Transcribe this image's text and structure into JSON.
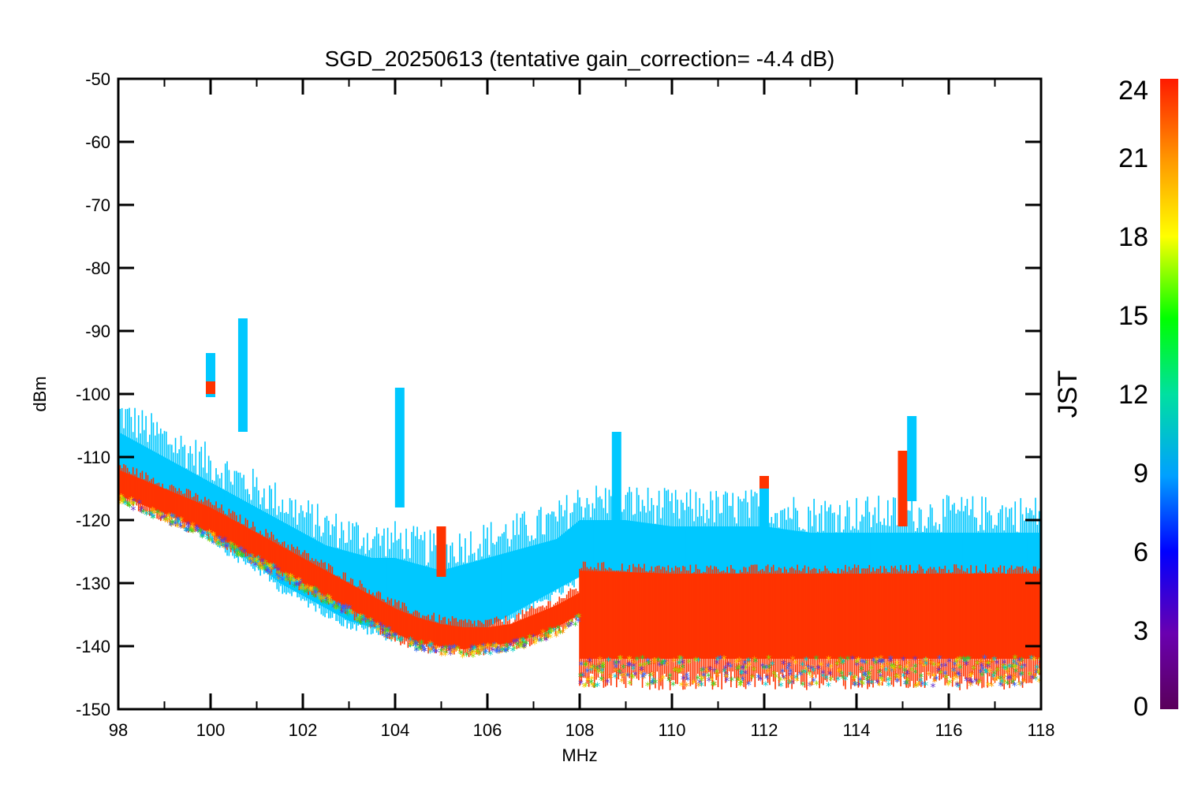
{
  "chart_data": {
    "type": "scatter",
    "title": "SGD_20250613 (tentative gain_correction= -4.4 dB)",
    "xlabel": "MHz",
    "ylabel": "dBm",
    "xlim": [
      98,
      118
    ],
    "ylim": [
      -150,
      -50
    ],
    "x_ticks": [
      "98",
      "100",
      "102",
      "104",
      "106",
      "108",
      "110",
      "112",
      "114",
      "116",
      "118"
    ],
    "y_ticks": [
      "-50",
      "-60",
      "-70",
      "-80",
      "-90",
      "-100",
      "-110",
      "-120",
      "-130",
      "-140",
      "-150"
    ],
    "colorbar": {
      "label": "JST",
      "range": [
        0,
        24
      ],
      "ticks": [
        "0",
        "3",
        "6",
        "9",
        "12",
        "15",
        "18",
        "21",
        "24"
      ],
      "colormap": "rainbow"
    },
    "series": [
      {
        "color": "#00c8ff",
        "description_hours": 8.5,
        "envelope_x": [
          98,
          98.5,
          99,
          99.5,
          100,
          100.5,
          101,
          101.5,
          102,
          102.5,
          103,
          103.5,
          104,
          104.5,
          105,
          105.5,
          106,
          106.5,
          107,
          107.5,
          108,
          109,
          110,
          111,
          112,
          113,
          114,
          115,
          116,
          117,
          118
        ],
        "envelope_top": [
          -106,
          -108,
          -110,
          -112,
          -114,
          -116,
          -118,
          -120,
          -122,
          -124,
          -125,
          -126,
          -126,
          -127,
          -128,
          -127,
          -126,
          -125,
          -124,
          -123,
          -120,
          -120,
          -121,
          -121,
          -121,
          -122,
          -122,
          -122,
          -122,
          -122,
          -122
        ],
        "envelope_bottom": [
          -112,
          -114,
          -117,
          -120,
          -122,
          -125,
          -127,
          -130,
          -132,
          -134,
          -136,
          -137,
          -138,
          -139,
          -139,
          -138,
          -137,
          -135,
          -133,
          -131,
          -129,
          -129,
          -129,
          -129,
          -129,
          -129,
          -129,
          -129,
          -129,
          -129,
          -129
        ]
      },
      {
        "color": "#ff3300",
        "description_hours": 23,
        "envelope_x": [
          98,
          98.5,
          99,
          99.5,
          100,
          100.5,
          101,
          101.5,
          102,
          102.5,
          103,
          103.5,
          104,
          104.5,
          105,
          105.5,
          106,
          106.5,
          107,
          107.5,
          108
        ],
        "envelope_top": [
          -112,
          -113.5,
          -115,
          -116.5,
          -118,
          -120,
          -122,
          -124,
          -126,
          -128,
          -130,
          -132,
          -134,
          -135.5,
          -136.5,
          -137,
          -137,
          -136.5,
          -135,
          -133.5,
          -131.5
        ],
        "envelope_bottom": [
          -116,
          -117.5,
          -119,
          -120.5,
          -122,
          -124,
          -126,
          -128,
          -130,
          -132,
          -134,
          -136,
          -138,
          -139.5,
          -140,
          -140.5,
          -140,
          -139.5,
          -138.5,
          -137,
          -135
        ]
      },
      {
        "color": "#ff3300",
        "description_hours": 23,
        "envelope_x": [
          108,
          110,
          112,
          114,
          116,
          118
        ],
        "envelope_top": [
          -128,
          -128.5,
          -128.5,
          -128.5,
          -128.5,
          -128.5
        ],
        "envelope_bottom": [
          -142,
          -142,
          -142,
          -142,
          -142,
          -142
        ]
      }
    ],
    "spikes": [
      {
        "x": 100.0,
        "y_top": -93.5,
        "y_bottom": -100.5,
        "color": "#00c8ff"
      },
      {
        "x": 100.0,
        "y_top": -98,
        "y_bottom": -100,
        "color": "#ff3300"
      },
      {
        "x": 100.7,
        "y_top": -88,
        "y_bottom": -106,
        "color": "#00c8ff"
      },
      {
        "x": 104.1,
        "y_top": -99,
        "y_bottom": -118,
        "color": "#00c8ff"
      },
      {
        "x": 105.0,
        "y_top": -121,
        "y_bottom": -129,
        "color": "#ff3300"
      },
      {
        "x": 108.8,
        "y_top": -106,
        "y_bottom": -128,
        "color": "#00c8ff"
      },
      {
        "x": 112.0,
        "y_top": -113,
        "y_bottom": -115,
        "color": "#ff3300"
      },
      {
        "x": 112.0,
        "y_top": -115,
        "y_bottom": -123,
        "color": "#00c8ff"
      },
      {
        "x": 115.0,
        "y_top": -109,
        "y_bottom": -121,
        "color": "#ff3300"
      },
      {
        "x": 115.2,
        "y_top": -103.5,
        "y_bottom": -117,
        "color": "#00c8ff"
      }
    ],
    "grid": false
  }
}
